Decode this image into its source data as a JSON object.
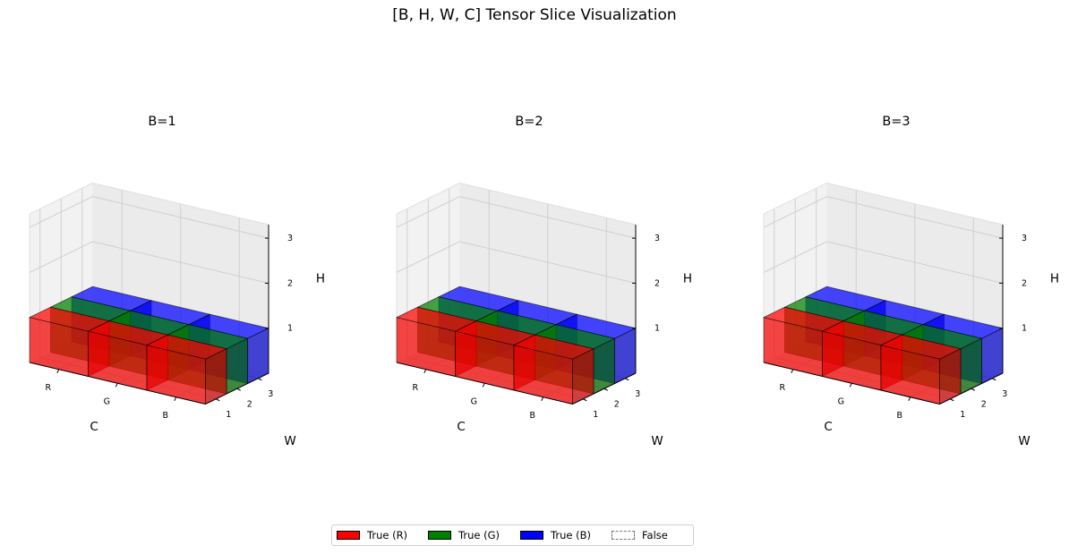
{
  "title": "[B, H, W, C] Tensor Slice Visualization",
  "chart_data": [
    {
      "type": "voxel3d",
      "title": "B=1",
      "xlabel": "C",
      "ylabel": "W",
      "zlabel": "H",
      "x_ticks": [
        "R",
        "G",
        "B"
      ],
      "y_ticks": [
        "1",
        "2",
        "3"
      ],
      "z_ticks": [
        "1",
        "2",
        "3"
      ],
      "zlim": [
        0,
        3.3
      ],
      "filled_height": 1,
      "depth_colors": [
        "#ff0000",
        "#008000",
        "#0000ff"
      ]
    },
    {
      "type": "voxel3d",
      "title": "B=2",
      "xlabel": "C",
      "ylabel": "W",
      "zlabel": "H",
      "x_ticks": [
        "R",
        "G",
        "B"
      ],
      "y_ticks": [
        "1",
        "2",
        "3"
      ],
      "z_ticks": [
        "1",
        "2",
        "3"
      ],
      "zlim": [
        0,
        3.3
      ],
      "filled_height": 1,
      "depth_colors": [
        "#ff0000",
        "#008000",
        "#0000ff"
      ]
    },
    {
      "type": "voxel3d",
      "title": "B=3",
      "xlabel": "C",
      "ylabel": "W",
      "zlabel": "H",
      "x_ticks": [
        "R",
        "G",
        "B"
      ],
      "y_ticks": [
        "1",
        "2",
        "3"
      ],
      "z_ticks": [
        "1",
        "2",
        "3"
      ],
      "zlim": [
        0,
        3.3
      ],
      "filled_height": 1,
      "depth_colors": [
        "#ff0000",
        "#008000",
        "#0000ff"
      ]
    }
  ],
  "legend": {
    "placement": "bottom-center",
    "items": [
      {
        "label": "True (R)",
        "color": "#ff0000"
      },
      {
        "label": "True (G)",
        "color": "#008000"
      },
      {
        "label": "True (B)",
        "color": "#0000ff"
      },
      {
        "label": "False",
        "color": "none"
      }
    ]
  }
}
